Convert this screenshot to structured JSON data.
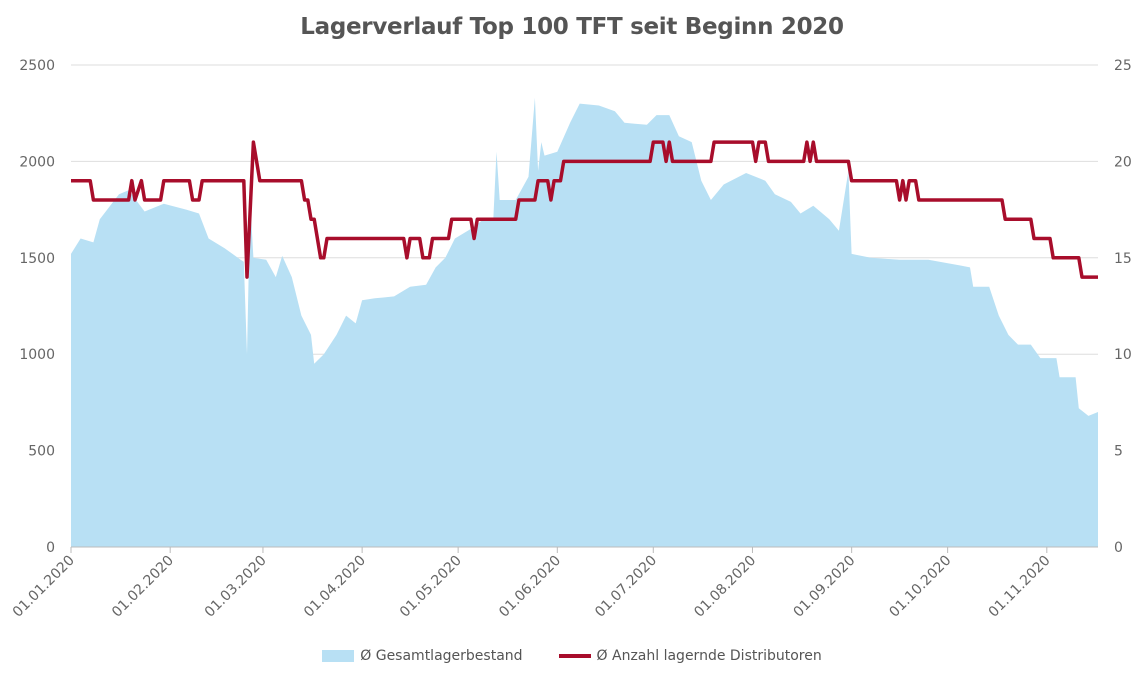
{
  "chart_data": {
    "type": "area+line",
    "title": "Lagerverlauf Top 100 TFT seit Beginn 2020",
    "x_unit": "days since 01.01.2020",
    "x_range": [
      0,
      321
    ],
    "x_ticks": [
      {
        "day": 0,
        "label": "01.01.2020"
      },
      {
        "day": 31,
        "label": "01.02.2020"
      },
      {
        "day": 60,
        "label": "01.03.2020"
      },
      {
        "day": 91,
        "label": "01.04.2020"
      },
      {
        "day": 121,
        "label": "01.05.2020"
      },
      {
        "day": 152,
        "label": "01.06.2020"
      },
      {
        "day": 182,
        "label": "01.07.2020"
      },
      {
        "day": 213,
        "label": "01.08.2020"
      },
      {
        "day": 244,
        "label": "01.09.2020"
      },
      {
        "day": 274,
        "label": "01.10.2020"
      },
      {
        "day": 305,
        "label": "01.11.2020"
      }
    ],
    "y_left": {
      "range": [
        0,
        2500
      ],
      "ticks": [
        "0",
        "500",
        "1000",
        "1500",
        "2000",
        "2500"
      ]
    },
    "y_right": {
      "range": [
        0,
        25
      ],
      "ticks": [
        "0",
        "5",
        "10",
        "15",
        "20",
        "25"
      ]
    },
    "grid": true,
    "legend_position": "bottom",
    "series": [
      {
        "name": "Ø Gesamtlagerbestand",
        "type": "area",
        "axis": "left",
        "color": "#b8e0f4",
        "points": [
          [
            0,
            1520
          ],
          [
            3,
            1600
          ],
          [
            7,
            1580
          ],
          [
            9,
            1700
          ],
          [
            15,
            1830
          ],
          [
            18,
            1850
          ],
          [
            23,
            1740
          ],
          [
            29,
            1780
          ],
          [
            36,
            1750
          ],
          [
            40,
            1730
          ],
          [
            43,
            1600
          ],
          [
            48,
            1550
          ],
          [
            53,
            1490
          ],
          [
            54,
            1480
          ],
          [
            55,
            1000
          ],
          [
            56,
            1800
          ],
          [
            57,
            1500
          ],
          [
            61,
            1490
          ],
          [
            64,
            1400
          ],
          [
            66,
            1510
          ],
          [
            69,
            1400
          ],
          [
            72,
            1200
          ],
          [
            75,
            1100
          ],
          [
            76,
            950
          ],
          [
            79,
            1000
          ],
          [
            83,
            1100
          ],
          [
            86,
            1200
          ],
          [
            89,
            1160
          ],
          [
            91,
            1280
          ],
          [
            95,
            1290
          ],
          [
            101,
            1300
          ],
          [
            106,
            1350
          ],
          [
            111,
            1360
          ],
          [
            114,
            1450
          ],
          [
            117,
            1500
          ],
          [
            120,
            1600
          ],
          [
            125,
            1650
          ],
          [
            129,
            1700
          ],
          [
            132,
            1700
          ],
          [
            133,
            2050
          ],
          [
            134,
            1800
          ],
          [
            139,
            1800
          ],
          [
            143,
            1920
          ],
          [
            145,
            2330
          ],
          [
            146,
            1950
          ],
          [
            147,
            2100
          ],
          [
            148,
            2030
          ],
          [
            152,
            2050
          ],
          [
            156,
            2200
          ],
          [
            159,
            2300
          ],
          [
            165,
            2290
          ],
          [
            170,
            2260
          ],
          [
            173,
            2200
          ],
          [
            180,
            2190
          ],
          [
            183,
            2240
          ],
          [
            187,
            2240
          ],
          [
            190,
            2130
          ],
          [
            194,
            2100
          ],
          [
            197,
            1900
          ],
          [
            200,
            1800
          ],
          [
            204,
            1880
          ],
          [
            211,
            1940
          ],
          [
            217,
            1900
          ],
          [
            220,
            1830
          ],
          [
            225,
            1790
          ],
          [
            228,
            1730
          ],
          [
            232,
            1770
          ],
          [
            237,
            1700
          ],
          [
            240,
            1640
          ],
          [
            243,
            1950
          ],
          [
            244,
            1520
          ],
          [
            250,
            1500
          ],
          [
            259,
            1490
          ],
          [
            268,
            1490
          ],
          [
            278,
            1460
          ],
          [
            281,
            1450
          ],
          [
            282,
            1350
          ],
          [
            287,
            1350
          ],
          [
            290,
            1200
          ],
          [
            293,
            1100
          ],
          [
            296,
            1050
          ],
          [
            300,
            1050
          ],
          [
            303,
            980
          ],
          [
            308,
            980
          ],
          [
            309,
            880
          ],
          [
            314,
            880
          ],
          [
            315,
            720
          ],
          [
            318,
            680
          ],
          [
            321,
            700
          ]
        ]
      },
      {
        "name": "Ø Anzahl lagernde Distributoren",
        "type": "line",
        "axis": "right",
        "color": "#a80d2b",
        "points": [
          [
            0,
            19
          ],
          [
            6,
            19
          ],
          [
            7,
            18
          ],
          [
            18,
            18
          ],
          [
            19,
            19
          ],
          [
            20,
            18
          ],
          [
            22,
            19
          ],
          [
            23,
            18
          ],
          [
            28,
            18
          ],
          [
            29,
            19
          ],
          [
            37,
            19
          ],
          [
            38,
            18
          ],
          [
            40,
            18
          ],
          [
            41,
            19
          ],
          [
            54,
            19
          ],
          [
            55,
            14
          ],
          [
            57,
            21
          ],
          [
            59,
            19
          ],
          [
            72,
            19
          ],
          [
            73,
            18
          ],
          [
            74,
            18
          ],
          [
            75,
            17
          ],
          [
            76,
            17
          ],
          [
            78,
            15
          ],
          [
            79,
            15
          ],
          [
            80,
            16
          ],
          [
            104,
            16
          ],
          [
            105,
            15
          ],
          [
            106,
            16
          ],
          [
            109,
            16
          ],
          [
            110,
            15
          ],
          [
            112,
            15
          ],
          [
            113,
            16
          ],
          [
            118,
            16
          ],
          [
            119,
            17
          ],
          [
            125,
            17
          ],
          [
            126,
            16
          ],
          [
            127,
            17
          ],
          [
            139,
            17
          ],
          [
            140,
            18
          ],
          [
            145,
            18
          ],
          [
            146,
            19
          ],
          [
            149,
            19
          ],
          [
            150,
            18
          ],
          [
            151,
            19
          ],
          [
            153,
            19
          ],
          [
            154,
            20
          ],
          [
            181,
            20
          ],
          [
            182,
            21
          ],
          [
            185,
            21
          ],
          [
            186,
            20
          ],
          [
            187,
            21
          ],
          [
            188,
            20
          ],
          [
            200,
            20
          ],
          [
            201,
            21
          ],
          [
            213,
            21
          ],
          [
            214,
            20
          ],
          [
            215,
            21
          ],
          [
            217,
            21
          ],
          [
            218,
            20
          ],
          [
            229,
            20
          ],
          [
            230,
            21
          ],
          [
            231,
            20
          ],
          [
            232,
            21
          ],
          [
            233,
            20
          ],
          [
            243,
            20
          ],
          [
            244,
            19
          ],
          [
            258,
            19
          ],
          [
            259,
            18
          ],
          [
            260,
            19
          ],
          [
            261,
            18
          ],
          [
            262,
            19
          ],
          [
            264,
            19
          ],
          [
            265,
            18
          ],
          [
            291,
            18
          ],
          [
            292,
            17
          ],
          [
            300,
            17
          ],
          [
            301,
            16
          ],
          [
            306,
            16
          ],
          [
            307,
            15
          ],
          [
            315,
            15
          ],
          [
            316,
            14
          ],
          [
            321,
            14
          ]
        ]
      }
    ]
  }
}
